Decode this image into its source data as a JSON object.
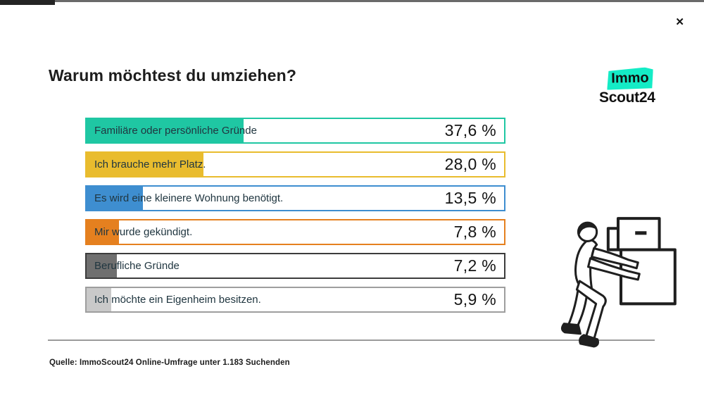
{
  "window": {
    "close_icon": "✕"
  },
  "page": {
    "title": "Warum möchtest du umziehen?"
  },
  "logo": {
    "top": "Immo",
    "bottom": "Scout24",
    "badge_color": "#14ecc6"
  },
  "chart_data": {
    "type": "bar",
    "orientation": "horizontal",
    "title": "Warum möchtest du umziehen?",
    "categories": [
      "Familiäre oder persönliche Gründe",
      "Ich brauche mehr Platz.",
      "Es wird eine kleinere Wohnung benötigt.",
      "Mir wurde gekündigt.",
      "Berufliche Gründe",
      "Ich möchte ein Eigenheim besitzen."
    ],
    "values": [
      37.6,
      28.0,
      13.5,
      7.8,
      7.2,
      5.9
    ],
    "value_labels": [
      "37,6 %",
      "28,0 %",
      "13,5 %",
      "7,8 %",
      "7,2 %",
      "5,9 %"
    ],
    "bar_colors": [
      "#1fc7a3",
      "#e9bc2e",
      "#3e8ed0",
      "#e5801f",
      "#6f6f6f",
      "#c9c9c9"
    ],
    "bar_border_colors": [
      "#1fc7a3",
      "#e9bc2e",
      "#3e8ed0",
      "#e5801f",
      "#3c3c3c",
      "#9e9e9e"
    ],
    "xlim": [
      0,
      100
    ],
    "grid": false,
    "legend": false,
    "value_label_position": "inside-right"
  },
  "footer": {
    "source": "Quelle: ImmoScout24 Online-Umfrage unter 1.183 Suchenden"
  },
  "illustration": {
    "name": "person-carrying-boxes"
  }
}
